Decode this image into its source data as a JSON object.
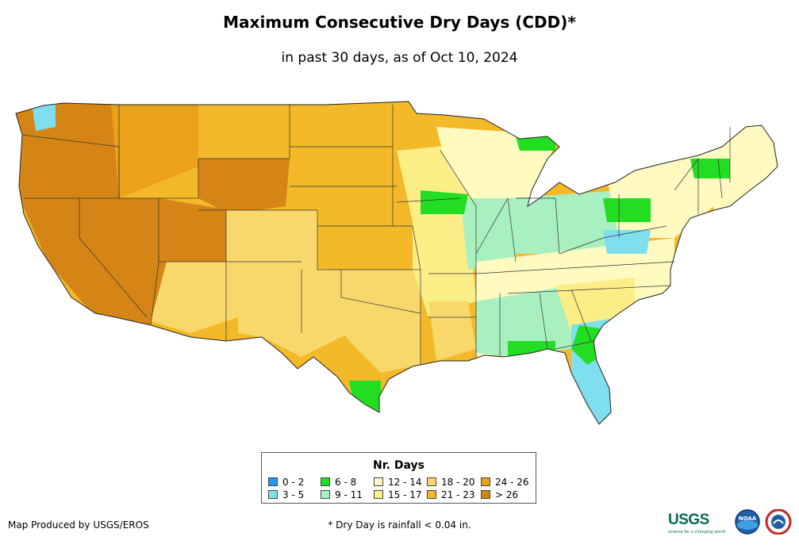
{
  "title": "Maximum Consecutive Dry Days (CDD)*",
  "subtitle": "in past 30 days, as of Oct 10, 2024",
  "legend": {
    "title": "Nr. Days",
    "items": [
      {
        "label": "0 - 2",
        "color": "#2196f3"
      },
      {
        "label": "3 - 5",
        "color": "#7fdfef"
      },
      {
        "label": "6 - 8",
        "color": "#22dd22"
      },
      {
        "label": "9 - 11",
        "color": "#a8f0c0"
      },
      {
        "label": "12 - 14",
        "color": "#fefac0"
      },
      {
        "label": "15 - 17",
        "color": "#fbee87"
      },
      {
        "label": "18 - 20",
        "color": "#f8d86a"
      },
      {
        "label": "21 - 23",
        "color": "#f3b928"
      },
      {
        "label": "24 - 26",
        "color": "#eba118"
      },
      {
        "label": "> 26",
        "color": "#d48516"
      }
    ]
  },
  "credit": "Map Produced by USGS/EROS",
  "footnote": "* Dry Day is rainfall < 0.04 in.",
  "logos": {
    "usgs": "USGS",
    "usgs_tagline": "science for a changing world",
    "noaa": "NOAA"
  }
}
